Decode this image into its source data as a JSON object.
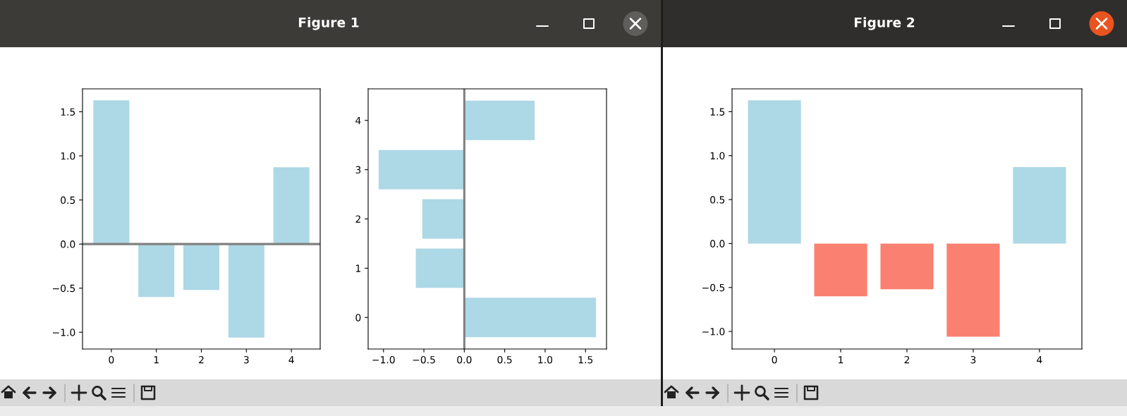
{
  "chart_data": [
    {
      "type": "bar",
      "categories": [
        "0",
        "1",
        "2",
        "3",
        "4"
      ],
      "values": [
        1.63,
        -0.6,
        -0.52,
        -1.06,
        0.87
      ],
      "color": "#add8e6",
      "ylim": [
        -1.19,
        1.76
      ],
      "yticks": [
        {
          "value": -1.0,
          "label": "−1.0"
        },
        {
          "value": -0.5,
          "label": "−0.5"
        },
        {
          "value": 0.0,
          "label": "0.0"
        },
        {
          "value": 0.5,
          "label": "0.5"
        },
        {
          "value": 1.0,
          "label": "1.0"
        },
        {
          "value": 1.5,
          "label": "1.5"
        }
      ],
      "ref_lines": [
        {
          "axis": "y",
          "value": 0,
          "color": "#808080"
        }
      ],
      "annotations": [
        "Figure 1"
      ]
    },
    {
      "type": "bar",
      "orientation": "horizontal",
      "categories": [
        "4",
        "3",
        "2",
        "1",
        "0"
      ],
      "values": [
        0.87,
        -1.06,
        -0.52,
        -0.6,
        1.63
      ],
      "color": "#add8e6",
      "xlim": [
        -1.19,
        1.76
      ],
      "xticks": [
        {
          "value": -1.0,
          "label": "−1.0"
        },
        {
          "value": -0.5,
          "label": "−0.5"
        },
        {
          "value": 0.0,
          "label": "0.0"
        },
        {
          "value": 0.5,
          "label": "0.5"
        },
        {
          "value": 1.0,
          "label": "1.0"
        },
        {
          "value": 1.5,
          "label": "1.5"
        }
      ],
      "ref_lines": [
        {
          "axis": "x",
          "value": 0,
          "color": "#808080"
        }
      ]
    },
    {
      "type": "bar",
      "categories": [
        "0",
        "1",
        "2",
        "3",
        "4"
      ],
      "values": [
        1.63,
        -0.6,
        -0.52,
        -1.06,
        0.87
      ],
      "colors": [
        "#add8e6",
        "#fa8072",
        "#fa8072",
        "#fa8072",
        "#add8e6"
      ],
      "ylim": [
        -1.2,
        1.76
      ],
      "yticks": [
        {
          "value": -1.0,
          "label": "−1.0"
        },
        {
          "value": -0.5,
          "label": "−0.5"
        },
        {
          "value": 0.0,
          "label": "0.0"
        },
        {
          "value": 0.5,
          "label": "0.5"
        },
        {
          "value": 1.0,
          "label": "1.0"
        },
        {
          "value": 1.5,
          "label": "1.5"
        }
      ],
      "annotations": [
        "Figure 2"
      ]
    }
  ]
}
